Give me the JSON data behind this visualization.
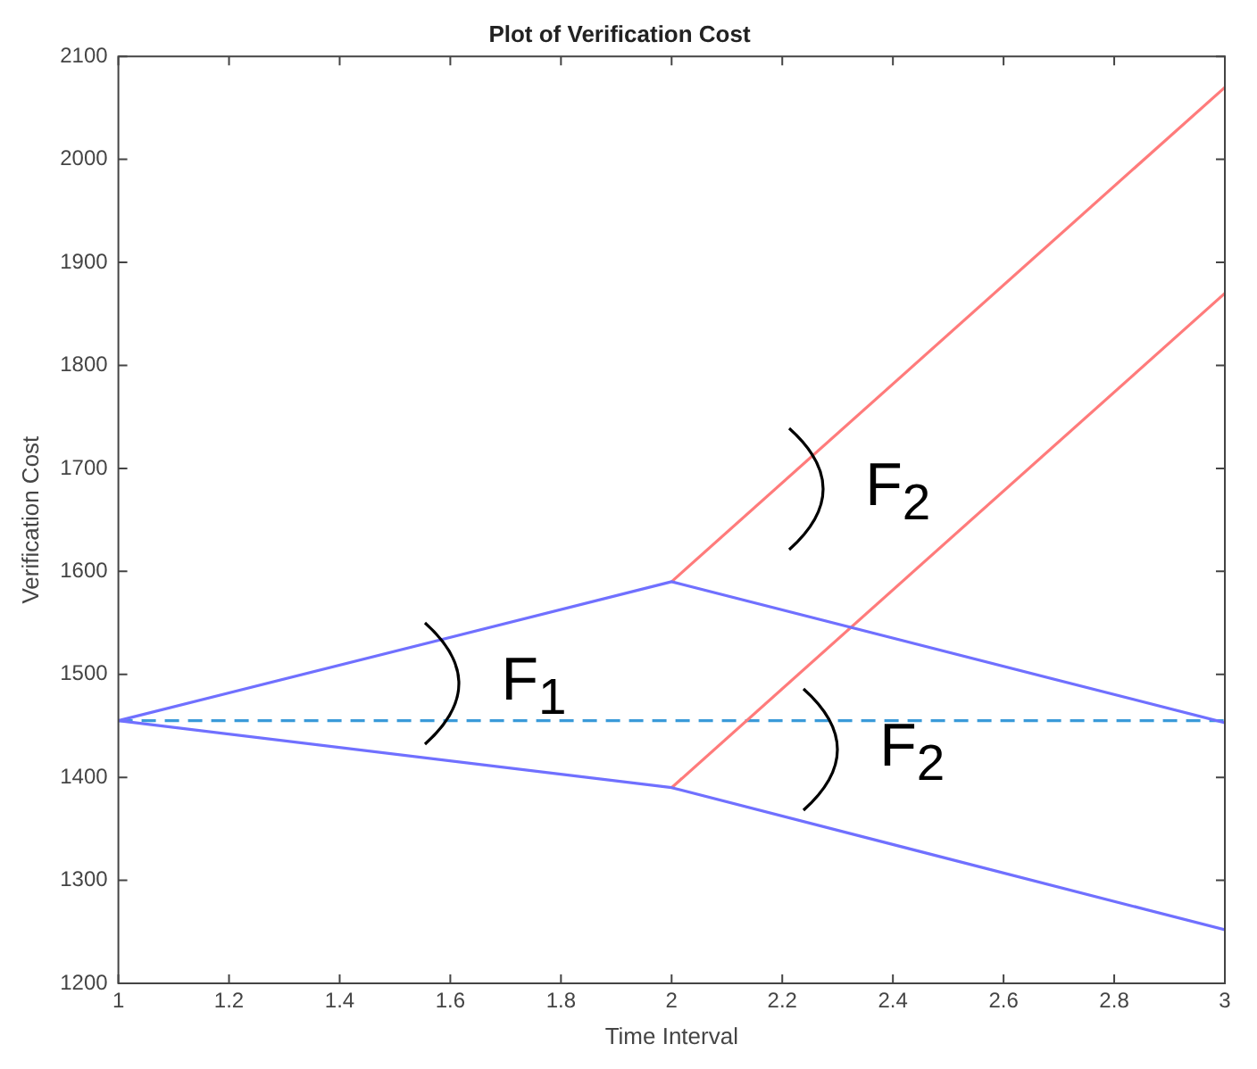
{
  "chart_data": {
    "type": "line",
    "title": "Plot of Verification Cost",
    "xlabel": "Time Interval",
    "ylabel": "Verification Cost",
    "series": [
      {
        "color": "#7070ff",
        "x": [
          1,
          2,
          3
        ],
        "values": [
          1455,
          1590,
          1453
        ]
      },
      {
        "color": "#7070ff",
        "x": [
          1,
          2,
          3
        ],
        "values": [
          1455,
          1390,
          1252
        ]
      },
      {
        "color": "#ff7b7b",
        "x": [
          2,
          3
        ],
        "values": [
          1590,
          2070
        ]
      },
      {
        "color": "#ff7b7b",
        "x": [
          2,
          3
        ],
        "values": [
          1390,
          1870
        ]
      }
    ],
    "ref_lines": [
      {
        "axis": "y",
        "value": 1455,
        "color": "#3a9ad9",
        "line_style": "dashed"
      }
    ],
    "annotations": [
      "F$_{1}$",
      "F$_{2}$",
      "F$_{2}$"
    ],
    "xlim": [
      1,
      3
    ],
    "xticks": [
      1,
      1.2,
      1.4,
      1.6,
      1.8,
      2,
      2.2,
      2.4,
      2.6,
      2.8,
      3
    ],
    "ylim": [
      1200,
      2100
    ],
    "yticks": [
      1200,
      1300,
      1400,
      1500,
      1600,
      1700,
      1800,
      1900,
      2000,
      2100
    ],
    "grid": false,
    "legend": false,
    "marker": "none",
    "line_style": "solid"
  }
}
